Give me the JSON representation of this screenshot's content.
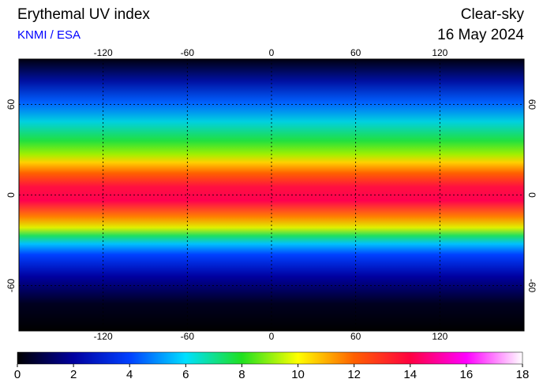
{
  "header": {
    "title": "Erythemal UV index",
    "source": "KNMI / ESA",
    "condition": "Clear-sky",
    "date": "16 May 2024"
  },
  "map": {
    "lonlim": [
      -180,
      180
    ],
    "latlim": [
      -90,
      90
    ],
    "lonticks": [
      -120,
      -60,
      0,
      60,
      120
    ],
    "latticks": [
      -60,
      0,
      60
    ]
  },
  "colorbar": {
    "lim": [
      0,
      18
    ],
    "ticks": [
      0,
      2,
      4,
      6,
      8,
      10,
      12,
      14,
      16,
      18
    ],
    "colors": [
      "#000000",
      "#0000a0",
      "#0040ff",
      "#00e0ff",
      "#20e020",
      "#ffff00",
      "#ff6000",
      "#ff0040",
      "#ff00ff",
      "#ffffff"
    ]
  }
}
